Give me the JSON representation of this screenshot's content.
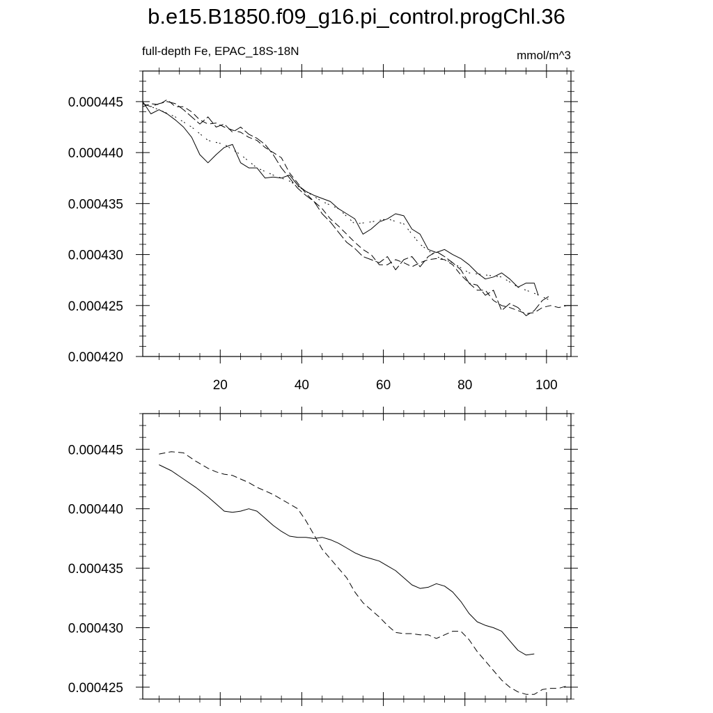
{
  "title": "b.e15.B1850.f09_g16.pi_control.progChl.36",
  "subtitle_left": "full-depth Fe, EPAC_18S-18N",
  "subtitle_right": "mmol/m^3",
  "chart_data": [
    {
      "type": "line",
      "title": "b.e15.B1850.f09_g16.pi_control.progChl.36",
      "subtitle_left": "full-depth Fe, EPAC_18S-18N",
      "subtitle_right": "mmol/m^3",
      "xlabel": "",
      "ylabel": "",
      "xlim": [
        1,
        106
      ],
      "ylim": [
        0.00042,
        0.000448
      ],
      "xticks": [
        20,
        40,
        60,
        80,
        100
      ],
      "xtick_labels": [
        "20",
        "40",
        "60",
        "80",
        "100"
      ],
      "yticks": [
        0.00042,
        0.000425,
        0.00043,
        0.000435,
        0.00044,
        0.000445
      ],
      "ytick_labels": [
        "0.000420",
        "0.000425",
        "0.000430",
        "0.000435",
        "0.000440",
        "0.000445"
      ],
      "grid": false,
      "series": [
        {
          "style": "solid",
          "x": [
            1,
            3,
            5,
            7,
            9,
            11,
            13,
            15,
            17,
            19,
            21,
            23,
            25,
            27,
            29,
            31,
            33,
            35,
            37,
            39,
            41,
            43,
            45,
            47,
            49,
            51,
            53,
            55,
            57,
            59,
            61,
            63,
            65,
            67,
            69,
            71,
            73,
            75,
            77,
            79,
            81,
            83,
            85,
            87,
            89,
            91,
            93,
            95,
            97,
            98
          ],
          "y": [
            0.000445,
            0.0004438,
            0.0004442,
            0.0004438,
            0.0004432,
            0.0004425,
            0.0004415,
            0.0004398,
            0.000439,
            0.0004398,
            0.0004405,
            0.0004408,
            0.000439,
            0.0004385,
            0.0004385,
            0.0004375,
            0.0004376,
            0.0004375,
            0.0004378,
            0.0004368,
            0.0004362,
            0.0004358,
            0.0004355,
            0.0004352,
            0.0004345,
            0.000434,
            0.0004335,
            0.000432,
            0.0004325,
            0.0004332,
            0.0004335,
            0.000434,
            0.0004338,
            0.0004325,
            0.000432,
            0.0004305,
            0.0004302,
            0.0004305,
            0.00043,
            0.0004296,
            0.000429,
            0.0004282,
            0.0004276,
            0.0004278,
            0.0004282,
            0.0004276,
            0.0004268,
            0.0004272,
            0.0004272,
            0.000426
          ]
        },
        {
          "style": "dashed",
          "x": [
            1,
            3,
            5,
            7,
            9,
            11,
            13,
            15,
            17,
            19,
            21,
            23,
            25,
            27,
            29,
            31,
            33,
            35,
            37,
            39,
            41,
            43,
            45,
            47,
            49,
            51,
            53,
            55,
            57,
            59,
            61,
            63,
            65,
            67,
            69,
            71,
            73,
            75,
            77,
            79,
            81,
            83,
            85,
            87,
            89,
            91,
            93,
            95,
            97,
            99,
            101,
            103,
            105,
            106
          ],
          "y": [
            0.0004445,
            0.0004448,
            0.0004447,
            0.0004452,
            0.0004445,
            0.0004445,
            0.000444,
            0.0004432,
            0.0004428,
            0.0004429,
            0.0004425,
            0.0004422,
            0.000442,
            0.0004415,
            0.0004412,
            0.0004405,
            0.00044,
            0.0004395,
            0.000438,
            0.000437,
            0.000436,
            0.0004352,
            0.0004345,
            0.0004335,
            0.0004328,
            0.000432,
            0.0004312,
            0.0004305,
            0.00043,
            0.000429,
            0.000429,
            0.0004295,
            0.0004292,
            0.0004288,
            0.0004292,
            0.0004295,
            0.0004296,
            0.0004295,
            0.000429,
            0.000428,
            0.0004272,
            0.0004265,
            0.0004265,
            0.0004255,
            0.000425,
            0.0004248,
            0.0004245,
            0.0004242,
            0.0004243,
            0.0004248,
            0.000425,
            0.0004248,
            0.000425,
            0.000425
          ]
        },
        {
          "style": "dash-dot",
          "x": [
            1,
            5,
            9,
            13,
            17,
            21,
            25,
            29,
            33,
            37,
            41,
            45,
            49,
            53,
            57,
            61,
            65,
            69,
            73,
            77,
            81,
            85,
            89,
            93,
            97,
            101
          ],
          "y": [
            0.0004448,
            0.0004442,
            0.0004435,
            0.0004425,
            0.0004412,
            0.0004408,
            0.0004398,
            0.0004385,
            0.0004378,
            0.0004372,
            0.0004362,
            0.0004352,
            0.0004345,
            0.000433,
            0.0004332,
            0.0004335,
            0.000433,
            0.000431,
            0.0004298,
            0.0004292,
            0.0004282,
            0.000428,
            0.0004278,
            0.0004268,
            0.0004262,
            0.0004255
          ]
        },
        {
          "style": "long-dash",
          "x": [
            1,
            3,
            5,
            7,
            9,
            11,
            13,
            15,
            17,
            19,
            21,
            23,
            25,
            27,
            29,
            31,
            33,
            35,
            37,
            39,
            41,
            43,
            45,
            47,
            49,
            51,
            53,
            55,
            57,
            59,
            61,
            63,
            65,
            67,
            69,
            71,
            73,
            75,
            77,
            79,
            81,
            83,
            85,
            87,
            89,
            91,
            93,
            95,
            97,
            99,
            101
          ],
          "y": [
            0.0004448,
            0.0004445,
            0.0004448,
            0.000445,
            0.0004448,
            0.0004442,
            0.0004435,
            0.0004428,
            0.0004435,
            0.0004425,
            0.0004428,
            0.000442,
            0.0004425,
            0.0004418,
            0.0004414,
            0.0004408,
            0.0004398,
            0.0004385,
            0.0004375,
            0.0004365,
            0.0004358,
            0.0004352,
            0.000434,
            0.0004332,
            0.0004322,
            0.0004312,
            0.0004306,
            0.0004298,
            0.0004295,
            0.0004292,
            0.0004298,
            0.0004285,
            0.0004295,
            0.0004298,
            0.0004288,
            0.0004298,
            0.0004303,
            0.0004298,
            0.0004292,
            0.0004285,
            0.0004272,
            0.000427,
            0.000426,
            0.0004265,
            0.0004245,
            0.0004252,
            0.0004248,
            0.000424,
            0.0004245,
            0.0004255,
            0.000426
          ]
        }
      ]
    },
    {
      "type": "line",
      "xlim": [
        1,
        106
      ],
      "ylim": [
        0.000424,
        0.000448
      ],
      "xticks": [
        20,
        40,
        60,
        80,
        100
      ],
      "yticks": [
        0.000425,
        0.00043,
        0.000435,
        0.00044,
        0.000445
      ],
      "ytick_labels": [
        "0.000425",
        "0.000430",
        "0.000435",
        "0.000440",
        "0.000445"
      ],
      "grid": false,
      "series": [
        {
          "style": "solid",
          "x": [
            5,
            8,
            11,
            14,
            17,
            19,
            21,
            23,
            25,
            27,
            29,
            31,
            33,
            35,
            37,
            39,
            41,
            43,
            45,
            47,
            49,
            51,
            53,
            55,
            57,
            59,
            61,
            63,
            65,
            67,
            69,
            71,
            73,
            75,
            77,
            79,
            81,
            83,
            85,
            87,
            89,
            91,
            93,
            95,
            97
          ],
          "y": [
            0.0004437,
            0.0004432,
            0.0004425,
            0.0004418,
            0.000441,
            0.0004404,
            0.0004398,
            0.0004397,
            0.0004398,
            0.00044,
            0.0004398,
            0.0004392,
            0.0004386,
            0.0004381,
            0.0004377,
            0.0004376,
            0.0004376,
            0.0004375,
            0.0004376,
            0.0004374,
            0.0004371,
            0.0004367,
            0.0004363,
            0.000436,
            0.0004358,
            0.0004356,
            0.0004352,
            0.0004348,
            0.0004342,
            0.0004336,
            0.0004333,
            0.0004334,
            0.0004337,
            0.0004335,
            0.000433,
            0.0004322,
            0.0004312,
            0.0004305,
            0.0004302,
            0.00043,
            0.0004297,
            0.0004289,
            0.0004281,
            0.0004277,
            0.0004278
          ]
        },
        {
          "style": "dashed",
          "x": [
            5,
            8,
            11,
            14,
            17,
            19,
            21,
            23,
            25,
            27,
            29,
            31,
            33,
            35,
            37,
            39,
            41,
            43,
            45,
            47,
            49,
            51,
            53,
            55,
            57,
            59,
            61,
            63,
            65,
            67,
            69,
            71,
            73,
            75,
            77,
            79,
            81,
            83,
            85,
            87,
            89,
            91,
            93,
            95,
            97,
            99,
            101,
            103,
            105
          ],
          "y": [
            0.0004446,
            0.0004448,
            0.0004447,
            0.000444,
            0.0004434,
            0.0004431,
            0.0004429,
            0.0004428,
            0.0004425,
            0.0004422,
            0.0004418,
            0.0004415,
            0.0004412,
            0.0004408,
            0.0004404,
            0.00044,
            0.000439,
            0.0004378,
            0.0004366,
            0.0004358,
            0.000435,
            0.0004342,
            0.000433,
            0.0004321,
            0.0004315,
            0.0004309,
            0.0004302,
            0.0004296,
            0.0004295,
            0.0004295,
            0.0004294,
            0.0004294,
            0.0004291,
            0.0004294,
            0.0004297,
            0.0004297,
            0.000429,
            0.000428,
            0.0004272,
            0.0004264,
            0.0004256,
            0.000425,
            0.0004246,
            0.0004244,
            0.0004244,
            0.0004248,
            0.0004249,
            0.0004249,
            0.0004251
          ]
        }
      ]
    }
  ]
}
